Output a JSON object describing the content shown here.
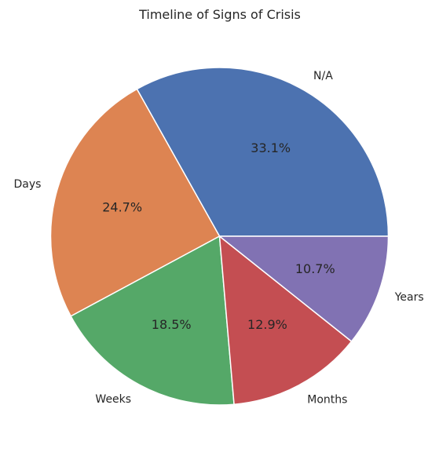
{
  "chart_data": {
    "type": "pie",
    "title": "Timeline of Signs of Crisis",
    "categories": [
      "N/A",
      "Days",
      "Weeks",
      "Months",
      "Years"
    ],
    "values": [
      33.1,
      24.7,
      18.5,
      12.9,
      10.7
    ],
    "value_labels": [
      "33.1%",
      "24.7%",
      "18.5%",
      "12.9%",
      "10.7%"
    ],
    "colors": [
      "#4c72b0",
      "#dd8452",
      "#55a868",
      "#c44e52",
      "#8172b3"
    ],
    "start_angle_deg": 0,
    "direction": "counterclockwise",
    "edge_color": "#ffffff",
    "legend": "none"
  }
}
